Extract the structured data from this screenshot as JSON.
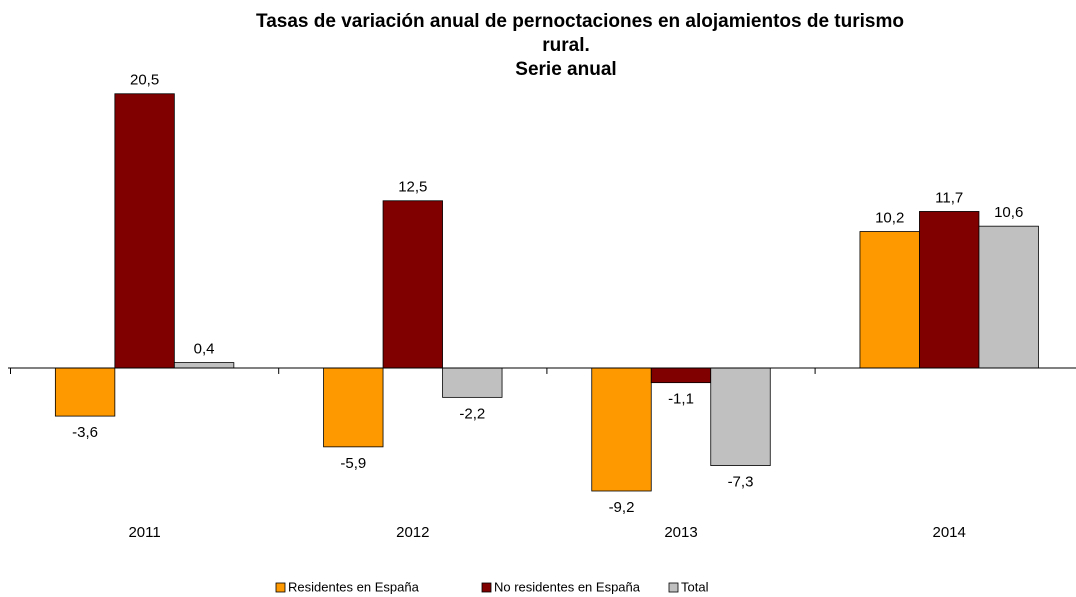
{
  "chart_data": {
    "type": "bar",
    "title": [
      "Tasas de variación anual de pernoctaciones en alojamientos de turismo",
      "rural."
    ],
    "subtitle": "Serie anual",
    "categories": [
      "2011",
      "2012",
      "2013",
      "2014"
    ],
    "series": [
      {
        "name": "Residentes en España",
        "color": "#ff9900",
        "values": [
          -3.6,
          -5.9,
          -9.2,
          10.2
        ],
        "value_labels": [
          "-3,6",
          "-5,9",
          "-9,2",
          "10,2"
        ]
      },
      {
        "name": "No residentes en España",
        "color": "#800000",
        "values": [
          20.5,
          12.5,
          -1.1,
          11.7
        ],
        "value_labels": [
          "20,5",
          "12,5",
          "-1,1",
          "11,7"
        ]
      },
      {
        "name": "Total",
        "color": "#c0c0c0",
        "values": [
          0.4,
          -2.2,
          -7.3,
          10.6
        ],
        "value_labels": [
          "0,4",
          "-2,2",
          "-7,3",
          "10,6"
        ]
      }
    ],
    "ylim": [
      -10,
      22
    ],
    "legend": "bottom"
  }
}
